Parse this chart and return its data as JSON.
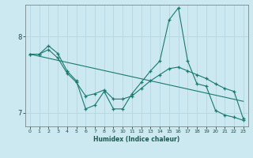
{
  "xlabel": "Humidex (Indice chaleur)",
  "bg_color": "#cce8f0",
  "grid_color": "#b8d8e4",
  "line_color": "#1a7a6e",
  "xlim": [
    -0.5,
    23.5
  ],
  "ylim": [
    6.82,
    8.42
  ],
  "yticks": [
    7.0,
    8.0
  ],
  "xticks": [
    0,
    1,
    2,
    3,
    4,
    5,
    6,
    7,
    8,
    9,
    10,
    11,
    12,
    13,
    14,
    15,
    16,
    17,
    18,
    19,
    20,
    21,
    22,
    23
  ],
  "line1_x": [
    0,
    1,
    2,
    3,
    4,
    5,
    6,
    7,
    8,
    9,
    10,
    11,
    12,
    13,
    14,
    15,
    16,
    17,
    18,
    19,
    20,
    21,
    22,
    23
  ],
  "line1_y": [
    7.77,
    7.77,
    7.83,
    7.72,
    7.52,
    7.4,
    7.22,
    7.25,
    7.3,
    7.18,
    7.18,
    7.22,
    7.32,
    7.42,
    7.5,
    7.58,
    7.6,
    7.55,
    7.5,
    7.45,
    7.38,
    7.32,
    7.28,
    6.92
  ],
  "line2_x": [
    0,
    1,
    2,
    3,
    4,
    5,
    6,
    7,
    8,
    9,
    10,
    11,
    12,
    13,
    14,
    15,
    16,
    17,
    18,
    19,
    20,
    21,
    22,
    23
  ],
  "line2_y": [
    7.77,
    7.77,
    7.88,
    7.78,
    7.55,
    7.42,
    7.05,
    7.1,
    7.28,
    7.05,
    7.05,
    7.25,
    7.4,
    7.55,
    7.68,
    8.22,
    8.38,
    7.68,
    7.38,
    7.35,
    7.03,
    6.97,
    6.94,
    6.9
  ],
  "line3_x": [
    0,
    23
  ],
  "line3_y": [
    7.77,
    7.15
  ]
}
